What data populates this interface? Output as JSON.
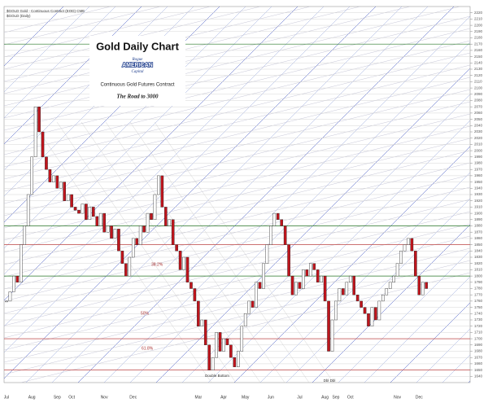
{
  "chart_data": {
    "type": "candlestick",
    "header": "$GOLD Gold - Continuous Contract (EOD) CME",
    "subheader": "$GOLD (Daily)",
    "title": "Gold Daily Chart",
    "logo_top": "Rogue",
    "logo_middle": "AMERICAN",
    "logo_bottom": "Capital",
    "subtitle": "Continuous Gold Futures Contract",
    "tagline": "The Road to 3000",
    "annotations": [
      "38.2%",
      "50%",
      "61.8%",
      "Double Bottom",
      "Dbl Dbl"
    ],
    "up_color": "#ffffff",
    "down_color": "#c0141c",
    "grid": true,
    "categories": [
      "Jul",
      null,
      null,
      null,
      null,
      null,
      null,
      "Aug",
      null,
      null,
      null,
      null,
      null,
      null,
      "Sep",
      null,
      null,
      null,
      "Oct",
      null,
      null,
      null,
      null,
      null,
      null,
      null,
      null,
      "Nov",
      null,
      null,
      null,
      null,
      null,
      null,
      null,
      "Dec",
      null,
      null,
      null,
      null,
      null,
      null,
      null,
      null,
      null,
      null,
      null,
      null,
      null,
      null,
      null,
      null,
      null,
      "Mar",
      null,
      null,
      null,
      null,
      null,
      null,
      "Apr",
      null,
      null,
      null,
      null,
      null,
      "May",
      null,
      null,
      null,
      null,
      null,
      null,
      "Jun",
      null,
      null,
      null,
      null,
      null,
      null,
      null,
      "Jul",
      null,
      null,
      null,
      null,
      null,
      null,
      "Aug",
      null,
      null,
      "Sep",
      null,
      null,
      null,
      "Oct",
      null,
      null,
      null,
      null,
      null,
      null,
      null,
      null,
      null,
      null,
      null,
      null,
      "Nov",
      null,
      null,
      null,
      null,
      null,
      "Dec",
      null,
      null
    ],
    "values": [
      1760,
      1775,
      1800,
      1790,
      1850,
      1880,
      1930,
      1990,
      2070,
      2030,
      1990,
      1970,
      1950,
      1960,
      1940,
      1950,
      1920,
      1930,
      1910,
      1905,
      1900,
      1915,
      1890,
      1910,
      1895,
      1880,
      1900,
      1870,
      1880,
      1860,
      1875,
      1840,
      1820,
      1800,
      1830,
      1860,
      1850,
      1880,
      1870,
      1900,
      1890,
      1930,
      1960,
      1910,
      1880,
      1890,
      1850,
      1840,
      1810,
      1830,
      1790,
      1780,
      1760,
      1720,
      1730,
      1690,
      1650,
      1670,
      1710,
      1680,
      1700,
      1690,
      1670,
      1655,
      1680,
      1720,
      1740,
      1760,
      1750,
      1790,
      1780,
      1820,
      1850,
      1880,
      1900,
      1890,
      1880,
      1850,
      1800,
      1770,
      1790,
      1780,
      1810,
      1800,
      1820,
      1810,
      1790,
      1800,
      1760,
      1680,
      1730,
      1760,
      1780,
      1770,
      1790,
      1800,
      1770,
      1760,
      1750,
      1740,
      1720,
      1750,
      1730,
      1760,
      1770,
      1780,
      1790,
      1800,
      1820,
      1840,
      1850,
      1860,
      1840,
      1800,
      1770,
      1790,
      1780
    ],
    "levels": [
      {
        "value": 2170,
        "color": "#2a7a2a"
      },
      {
        "value": 1880,
        "color": "#2a7a2a"
      },
      {
        "value": 1850,
        "color": "#c04848"
      },
      {
        "value": 1800,
        "color": "#2a7a2a"
      },
      {
        "value": 1700,
        "color": "#c04848"
      },
      {
        "value": 1650,
        "color": "#c04848"
      }
    ],
    "ylim": [
      1630,
      2230
    ],
    "yticks": [
      1640,
      1650,
      1660,
      1670,
      1680,
      1690,
      1700,
      1710,
      1720,
      1730,
      1740,
      1750,
      1760,
      1770,
      1780,
      1790,
      1800,
      1810,
      1820,
      1830,
      1840,
      1850,
      1860,
      1870,
      1880,
      1890,
      1900,
      1910,
      1920,
      1930,
      1940,
      1950,
      1960,
      1970,
      1980,
      1990,
      2000,
      2010,
      2020,
      2030,
      2040,
      2050,
      2060,
      2070,
      2080,
      2090,
      2100,
      2110,
      2120,
      2130,
      2140,
      2150,
      2160,
      2170,
      2180,
      2190,
      2200,
      2210,
      2220
    ]
  }
}
